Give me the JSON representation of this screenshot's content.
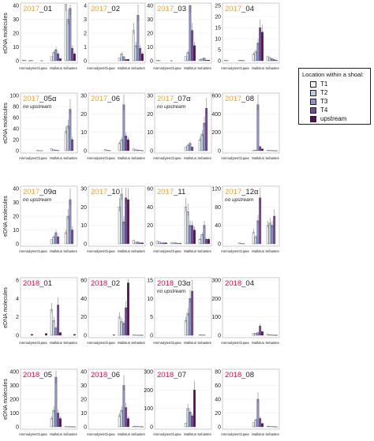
{
  "chart_data": {
    "type": "bar",
    "categories": [
      "Ammodytes",
      "Clupea",
      "Mallotus",
      "Sebastes"
    ],
    "ylabel": "eDNA molecules",
    "legend": {
      "title": "Location within a shoal:",
      "placement": "right",
      "entries": [
        "T1",
        "T2",
        "T3",
        "T4",
        "upstream"
      ],
      "colors": [
        "#eef3f8",
        "#b9cce0",
        "#8e92c8",
        "#7a479c",
        "#5b0a5a"
      ]
    },
    "year_colors": {
      "2017": "#f0a830",
      "2018": "#d6154f"
    },
    "panels": [
      {
        "year": "2017",
        "id": "_01",
        "note": "",
        "ymax": 40,
        "ticks": [
          0,
          10,
          20,
          30,
          40
        ],
        "values": [
          [
            0.4,
            0.3,
            0,
            0.1,
            0.2
          ],
          [
            0,
            0,
            0.1,
            0,
            0
          ],
          [
            3,
            6,
            8,
            5,
            1.5
          ],
          [
            41,
            30,
            38,
            9,
            5
          ]
        ]
      },
      {
        "year": "2017",
        "id": "_02",
        "note": "",
        "ymax": 4,
        "ticks": [
          0,
          1,
          2,
          3,
          4
        ],
        "values": [
          [
            0,
            0,
            0,
            0,
            0
          ],
          [
            0,
            0,
            0,
            0,
            0
          ],
          [
            0.2,
            0.5,
            0.3,
            0.1,
            0.1
          ],
          [
            2.2,
            1.1,
            3.3,
            0.9,
            0.5
          ]
        ]
      },
      {
        "year": "2017",
        "id": "_03",
        "note": "",
        "ymax": 40,
        "ticks": [
          0,
          10,
          20,
          30,
          40
        ],
        "values": [
          [
            0.5,
            0.2,
            0,
            0,
            0
          ],
          [
            0.1,
            0,
            0,
            0,
            0
          ],
          [
            3,
            6,
            40,
            22,
            11
          ],
          [
            1,
            1.5,
            2,
            0.5,
            0.5
          ]
        ]
      },
      {
        "year": "2017",
        "id": "_04",
        "note": "",
        "ymax": 25,
        "ticks": [
          0,
          5,
          10,
          15,
          20,
          25
        ],
        "values": [
          [
            0.3,
            0.1,
            0,
            0,
            0
          ],
          [
            0.2,
            0.3,
            0.1,
            0,
            0
          ],
          [
            3,
            4,
            8,
            15,
            13
          ],
          [
            2,
            1.5,
            1,
            0.5,
            0.2
          ]
        ]
      },
      {
        "year": "2017",
        "id": "_05",
        "note": "no upstream",
        "alpha": true,
        "ymax": 100,
        "ticks": [
          0,
          20,
          40,
          60,
          80,
          100
        ],
        "values": [
          [
            0,
            0,
            0,
            0,
            0
          ],
          [
            0.5,
            0.2,
            0.1,
            0,
            0
          ],
          [
            4,
            2,
            1,
            0.5,
            0
          ],
          [
            35,
            45,
            75,
            20,
            0
          ]
        ]
      },
      {
        "year": "2017",
        "id": "_06",
        "note": "",
        "ymax": 30,
        "ticks": [
          0,
          10,
          20,
          30
        ],
        "values": [
          [
            0,
            0,
            0,
            0,
            0
          ],
          [
            0.5,
            0.3,
            0.1,
            0,
            0
          ],
          [
            4,
            6,
            25,
            8,
            6
          ],
          [
            1,
            0.5,
            0.3,
            0.2,
            0.1
          ]
        ]
      },
      {
        "year": "2017",
        "id": "_07",
        "note": "no upstream",
        "alpha": true,
        "ymax": 30,
        "ticks": [
          0,
          10,
          20,
          30
        ],
        "values": [
          [
            0,
            0,
            0,
            0,
            0
          ],
          [
            0,
            0,
            0,
            0,
            0
          ],
          [
            2,
            3,
            4,
            2,
            0
          ],
          [
            6,
            9,
            15,
            23,
            0
          ]
        ]
      },
      {
        "year": "2017",
        "id": "_08",
        "note": "",
        "ymax": 600,
        "ticks": [
          0,
          200,
          400,
          600
        ],
        "values": [
          [
            0,
            0,
            0,
            0,
            0
          ],
          [
            0,
            0,
            0,
            0,
            0
          ],
          [
            3,
            6,
            500,
            45,
            20
          ],
          [
            5,
            3,
            2,
            1,
            0.5
          ]
        ]
      },
      {
        "year": "2017",
        "id": "_09",
        "note": "no upstream",
        "alpha": true,
        "ymax": 40,
        "ticks": [
          0,
          10,
          20,
          30,
          40
        ],
        "values": [
          [
            0,
            0,
            0,
            0,
            0
          ],
          [
            0,
            0,
            0,
            0,
            0
          ],
          [
            3,
            5,
            8,
            5,
            0
          ],
          [
            8,
            20,
            32,
            10,
            0
          ]
        ]
      },
      {
        "year": "2017",
        "id": "_10",
        "note": "",
        "ymax": 30,
        "ticks": [
          0,
          10,
          20,
          30
        ],
        "values": [
          [
            0,
            0,
            0,
            0,
            0
          ],
          [
            0,
            0,
            0,
            0,
            0
          ],
          [
            20,
            27,
            12,
            25,
            24
          ],
          [
            2,
            1,
            1,
            0.5,
            0.5
          ]
        ]
      },
      {
        "year": "2017",
        "id": "_11",
        "note": "",
        "ymax": 60,
        "ticks": [
          0,
          20,
          40,
          60
        ],
        "values": [
          [
            3,
            2,
            1,
            1,
            1
          ],
          [
            1,
            1,
            1,
            0.5,
            0.5
          ],
          [
            40,
            35,
            20,
            20,
            15
          ],
          [
            5,
            10,
            20,
            5,
            5
          ]
        ]
      },
      {
        "year": "2017",
        "id": "_12",
        "note": "no upstream",
        "alpha": true,
        "ymax": 120,
        "ticks": [
          0,
          40,
          80,
          120
        ],
        "values": [
          [
            0,
            0,
            0,
            0,
            0
          ],
          [
            2,
            1,
            0.5,
            0,
            0
          ],
          [
            25,
            15,
            50,
            100,
            0
          ],
          [
            40,
            45,
            40,
            60,
            0
          ]
        ]
      },
      {
        "year": "2018",
        "id": "_01",
        "note": "",
        "ymax": 6,
        "ticks": [
          0,
          2,
          4,
          6
        ],
        "values": [
          [
            0,
            0,
            0,
            0,
            0.1
          ],
          [
            0,
            0,
            0,
            0,
            0.2
          ],
          [
            2.8,
            1.6,
            0.8,
            3.3,
            0.3
          ],
          [
            0,
            0,
            0,
            0,
            0.1
          ]
        ]
      },
      {
        "year": "2018",
        "id": "_02",
        "note": "",
        "ymax": 60,
        "ticks": [
          0,
          20,
          40,
          60
        ],
        "values": [
          [
            0,
            0,
            0,
            0,
            0
          ],
          [
            0,
            0,
            0,
            0,
            0.5
          ],
          [
            20,
            15,
            13,
            30,
            57
          ],
          [
            0.5,
            0.3,
            0.2,
            0.2,
            0.1
          ]
        ]
      },
      {
        "year": "2018",
        "id": "_03",
        "note": "no upstream",
        "alpha": true,
        "ymax": 15,
        "ticks": [
          0,
          5,
          10,
          15
        ],
        "values": [
          [
            0,
            0,
            0,
            0,
            0
          ],
          [
            0,
            0,
            0,
            0,
            0
          ],
          [
            4,
            6,
            10,
            12,
            0
          ],
          [
            0.2,
            0.1,
            0.1,
            0,
            0
          ]
        ]
      },
      {
        "year": "2018",
        "id": "_04",
        "note": "",
        "ymax": 300,
        "ticks": [
          0,
          100,
          200,
          300
        ],
        "values": [
          [
            0,
            0,
            0,
            0,
            0
          ],
          [
            0,
            0,
            0,
            0,
            0
          ],
          [
            10,
            12,
            15,
            50,
            20
          ],
          [
            5,
            3,
            2,
            1,
            1
          ]
        ]
      },
      {
        "year": "2018",
        "id": "_05",
        "note": "",
        "ymax": 400,
        "ticks": [
          0,
          100,
          200,
          300,
          400
        ],
        "values": [
          [
            0,
            0,
            0,
            0,
            0
          ],
          [
            0,
            0,
            0,
            0,
            0
          ],
          [
            60,
            120,
            360,
            100,
            60
          ],
          [
            2,
            1,
            1,
            1,
            0.5
          ]
        ]
      },
      {
        "year": "2018",
        "id": "_06",
        "note": "",
        "ymax": 40,
        "ticks": [
          0,
          10,
          20,
          30,
          40
        ],
        "values": [
          [
            0,
            0,
            0,
            0,
            0
          ],
          [
            0,
            0,
            0,
            0,
            0
          ],
          [
            8,
            12,
            30,
            14,
            6
          ],
          [
            0.5,
            0.5,
            0.2,
            0.2,
            0.1
          ]
        ]
      },
      {
        "year": "2018",
        "id": "_07",
        "note": "",
        "ymax": 300,
        "ticks": [
          0,
          100,
          200,
          300
        ],
        "values": [
          [
            0,
            0,
            0,
            0,
            0
          ],
          [
            0,
            0,
            0,
            0,
            0
          ],
          [
            20,
            100,
            80,
            60,
            200
          ],
          [
            0,
            0,
            0,
            0,
            0
          ]
        ]
      },
      {
        "year": "2018",
        "id": "_08",
        "note": "",
        "ymax": 80,
        "ticks": [
          0,
          20,
          40,
          60,
          80
        ],
        "values": [
          [
            0,
            0,
            0,
            0,
            0
          ],
          [
            0,
            0,
            0,
            0,
            0
          ],
          [
            6,
            10,
            40,
            12,
            5
          ],
          [
            1,
            0.5,
            0.5,
            0.2,
            0.1
          ]
        ]
      }
    ]
  }
}
